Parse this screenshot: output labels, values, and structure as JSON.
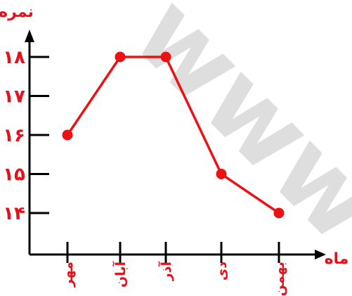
{
  "header_text": "... ... ... ...",
  "watermark": "www",
  "chart_data": {
    "type": "line",
    "ylabel": "نمره",
    "xlabel": "ماه",
    "categories": [
      "مهر",
      "آبان",
      "آذر",
      "دی",
      "بهمن"
    ],
    "values": [
      16,
      18,
      18,
      15,
      14
    ],
    "yticks": [
      "۱۴",
      "۱۵",
      "۱۶",
      "۱۷",
      "۱۸"
    ],
    "ytick_values": [
      14,
      15,
      16,
      17,
      18
    ],
    "ylim": [
      13,
      18.5
    ],
    "grid": false,
    "colors": {
      "line": "#ee1111",
      "axis": "#000000",
      "labels": "#e8101a"
    }
  }
}
